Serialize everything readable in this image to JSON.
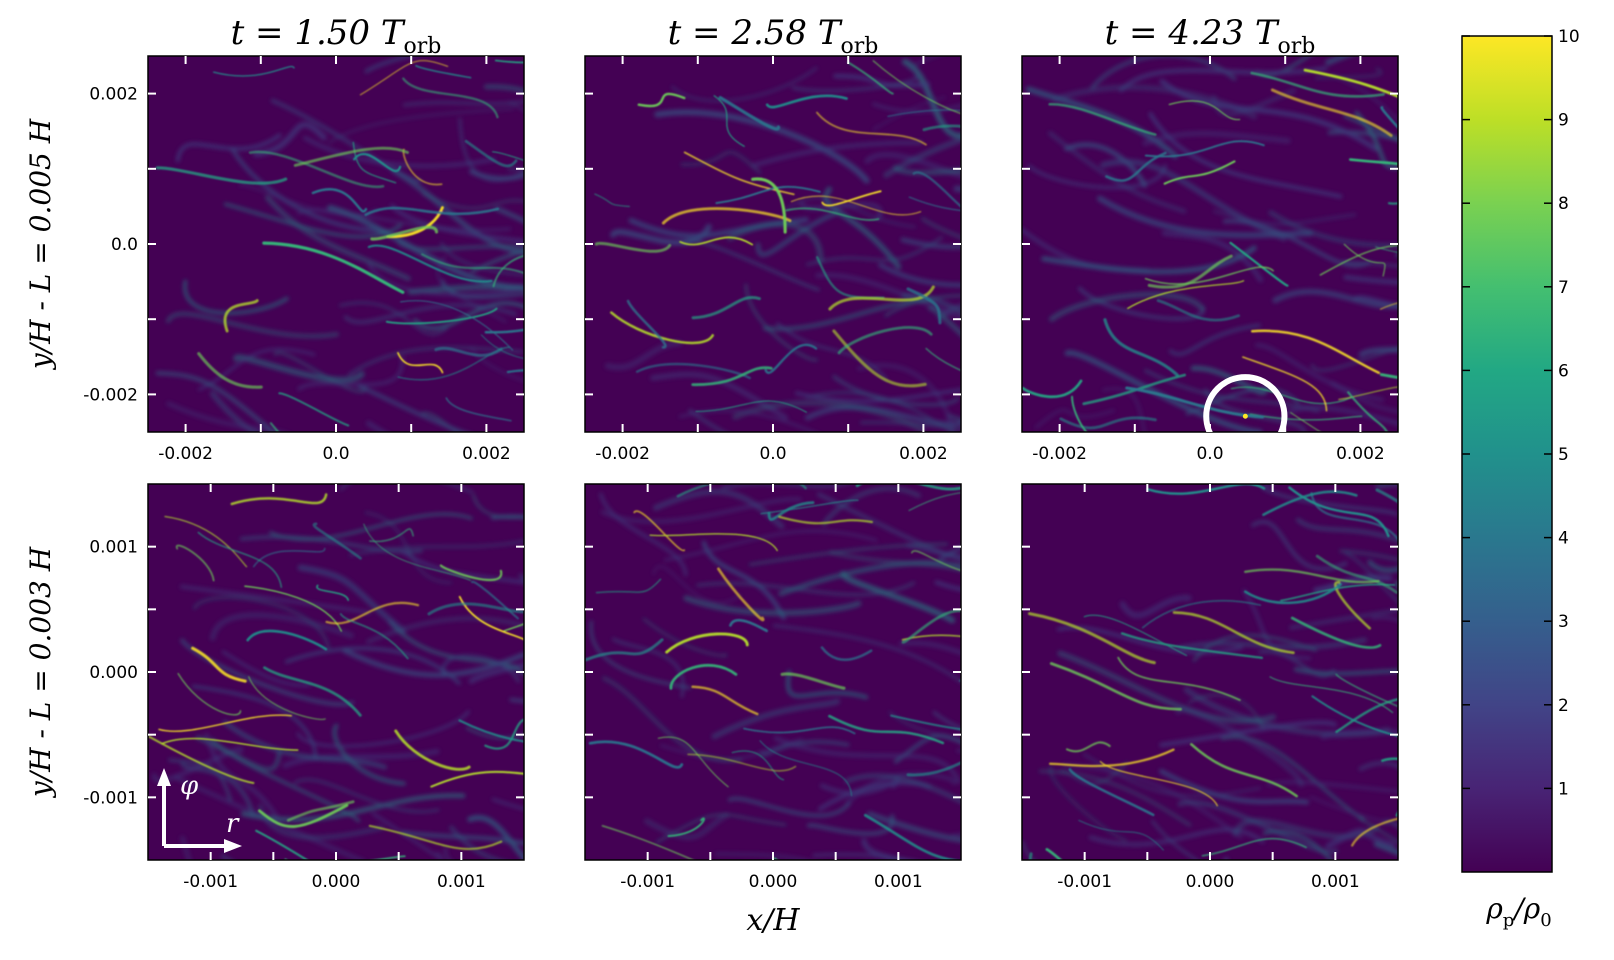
{
  "chart_data": {
    "type": "heatmap",
    "colormap": "viridis",
    "colors": {
      "low": "#440154",
      "mid": "#21918c",
      "high": "#fde725",
      "marker": "#ffffff"
    },
    "panels": [
      {
        "row": 0,
        "col": 0,
        "title": "t = 1.50 T_orb",
        "title_main": "t = 1.50 T",
        "title_sub": "orb",
        "xlim": [
          -0.0025,
          0.0025
        ],
        "ylim": [
          -0.0025,
          0.0025
        ],
        "xticks": [
          -0.002,
          0.0,
          0.002
        ],
        "xtick_labels": [
          "-0.002",
          "0.0",
          "0.002"
        ],
        "yticks": [
          -0.002,
          0.0,
          0.002
        ],
        "ytick_labels": [
          "-0.002",
          "0.0",
          "0.002"
        ]
      },
      {
        "row": 0,
        "col": 1,
        "title": "t = 2.58 T_orb",
        "title_main": "t = 2.58 T",
        "title_sub": "orb",
        "xlim": [
          -0.0025,
          0.0025
        ],
        "ylim": [
          -0.0025,
          0.0025
        ],
        "xticks": [
          -0.002,
          0.0,
          0.002
        ],
        "xtick_labels": [
          "-0.002",
          "0.0",
          "0.002"
        ]
      },
      {
        "row": 0,
        "col": 2,
        "title": "t = 4.23 T_orb",
        "title_main": "t = 4.23 T",
        "title_sub": "orb",
        "xlim": [
          -0.0025,
          0.0025
        ],
        "ylim": [
          -0.0025,
          0.0025
        ],
        "xticks": [
          -0.002,
          0.0,
          0.002
        ],
        "xtick_labels": [
          "-0.002",
          "0.0",
          "0.002"
        ],
        "circle_marker": {
          "x": 0.00047,
          "y": -0.00229,
          "radius": 0.00052
        }
      },
      {
        "row": 1,
        "col": 0,
        "xlim": [
          -0.0015,
          0.0015
        ],
        "ylim": [
          -0.0015,
          0.0015
        ],
        "xticks": [
          -0.001,
          0.0,
          0.001
        ],
        "xtick_labels": [
          "-0.001",
          "0.000",
          "0.001"
        ],
        "yticks": [
          -0.001,
          0.0,
          0.001
        ],
        "ytick_labels": [
          "-0.001",
          "0.000",
          "0.001"
        ],
        "direction_arrows": {
          "up_label": "φ",
          "right_label": "r"
        }
      },
      {
        "row": 1,
        "col": 1,
        "xlim": [
          -0.0015,
          0.0015
        ],
        "ylim": [
          -0.0015,
          0.0015
        ],
        "xticks": [
          -0.001,
          0.0,
          0.001
        ],
        "xtick_labels": [
          "-0.001",
          "0.000",
          "0.001"
        ]
      },
      {
        "row": 1,
        "col": 2,
        "xlim": [
          -0.0015,
          0.0015
        ],
        "ylim": [
          -0.0015,
          0.0015
        ],
        "xticks": [
          -0.001,
          0.0,
          0.001
        ],
        "xtick_labels": [
          "-0.001",
          "0.000",
          "0.001"
        ]
      }
    ],
    "row_ylabels": [
      "y/H - L = 0.005 H",
      "y/H - L = 0.003 H"
    ],
    "xlabel": "x/H",
    "colorbar": {
      "label": "ρp/ρ0",
      "label_main": "ρ",
      "label_sub1": "p",
      "label_slash": "/ρ",
      "label_sub2": "0",
      "range": [
        0,
        10
      ],
      "ticks": [
        1,
        2,
        3,
        4,
        5,
        6,
        7,
        8,
        9,
        10
      ],
      "tick_labels": [
        "1",
        "2",
        "3",
        "4",
        "5",
        "6",
        "7",
        "8",
        "9",
        "10"
      ]
    }
  }
}
